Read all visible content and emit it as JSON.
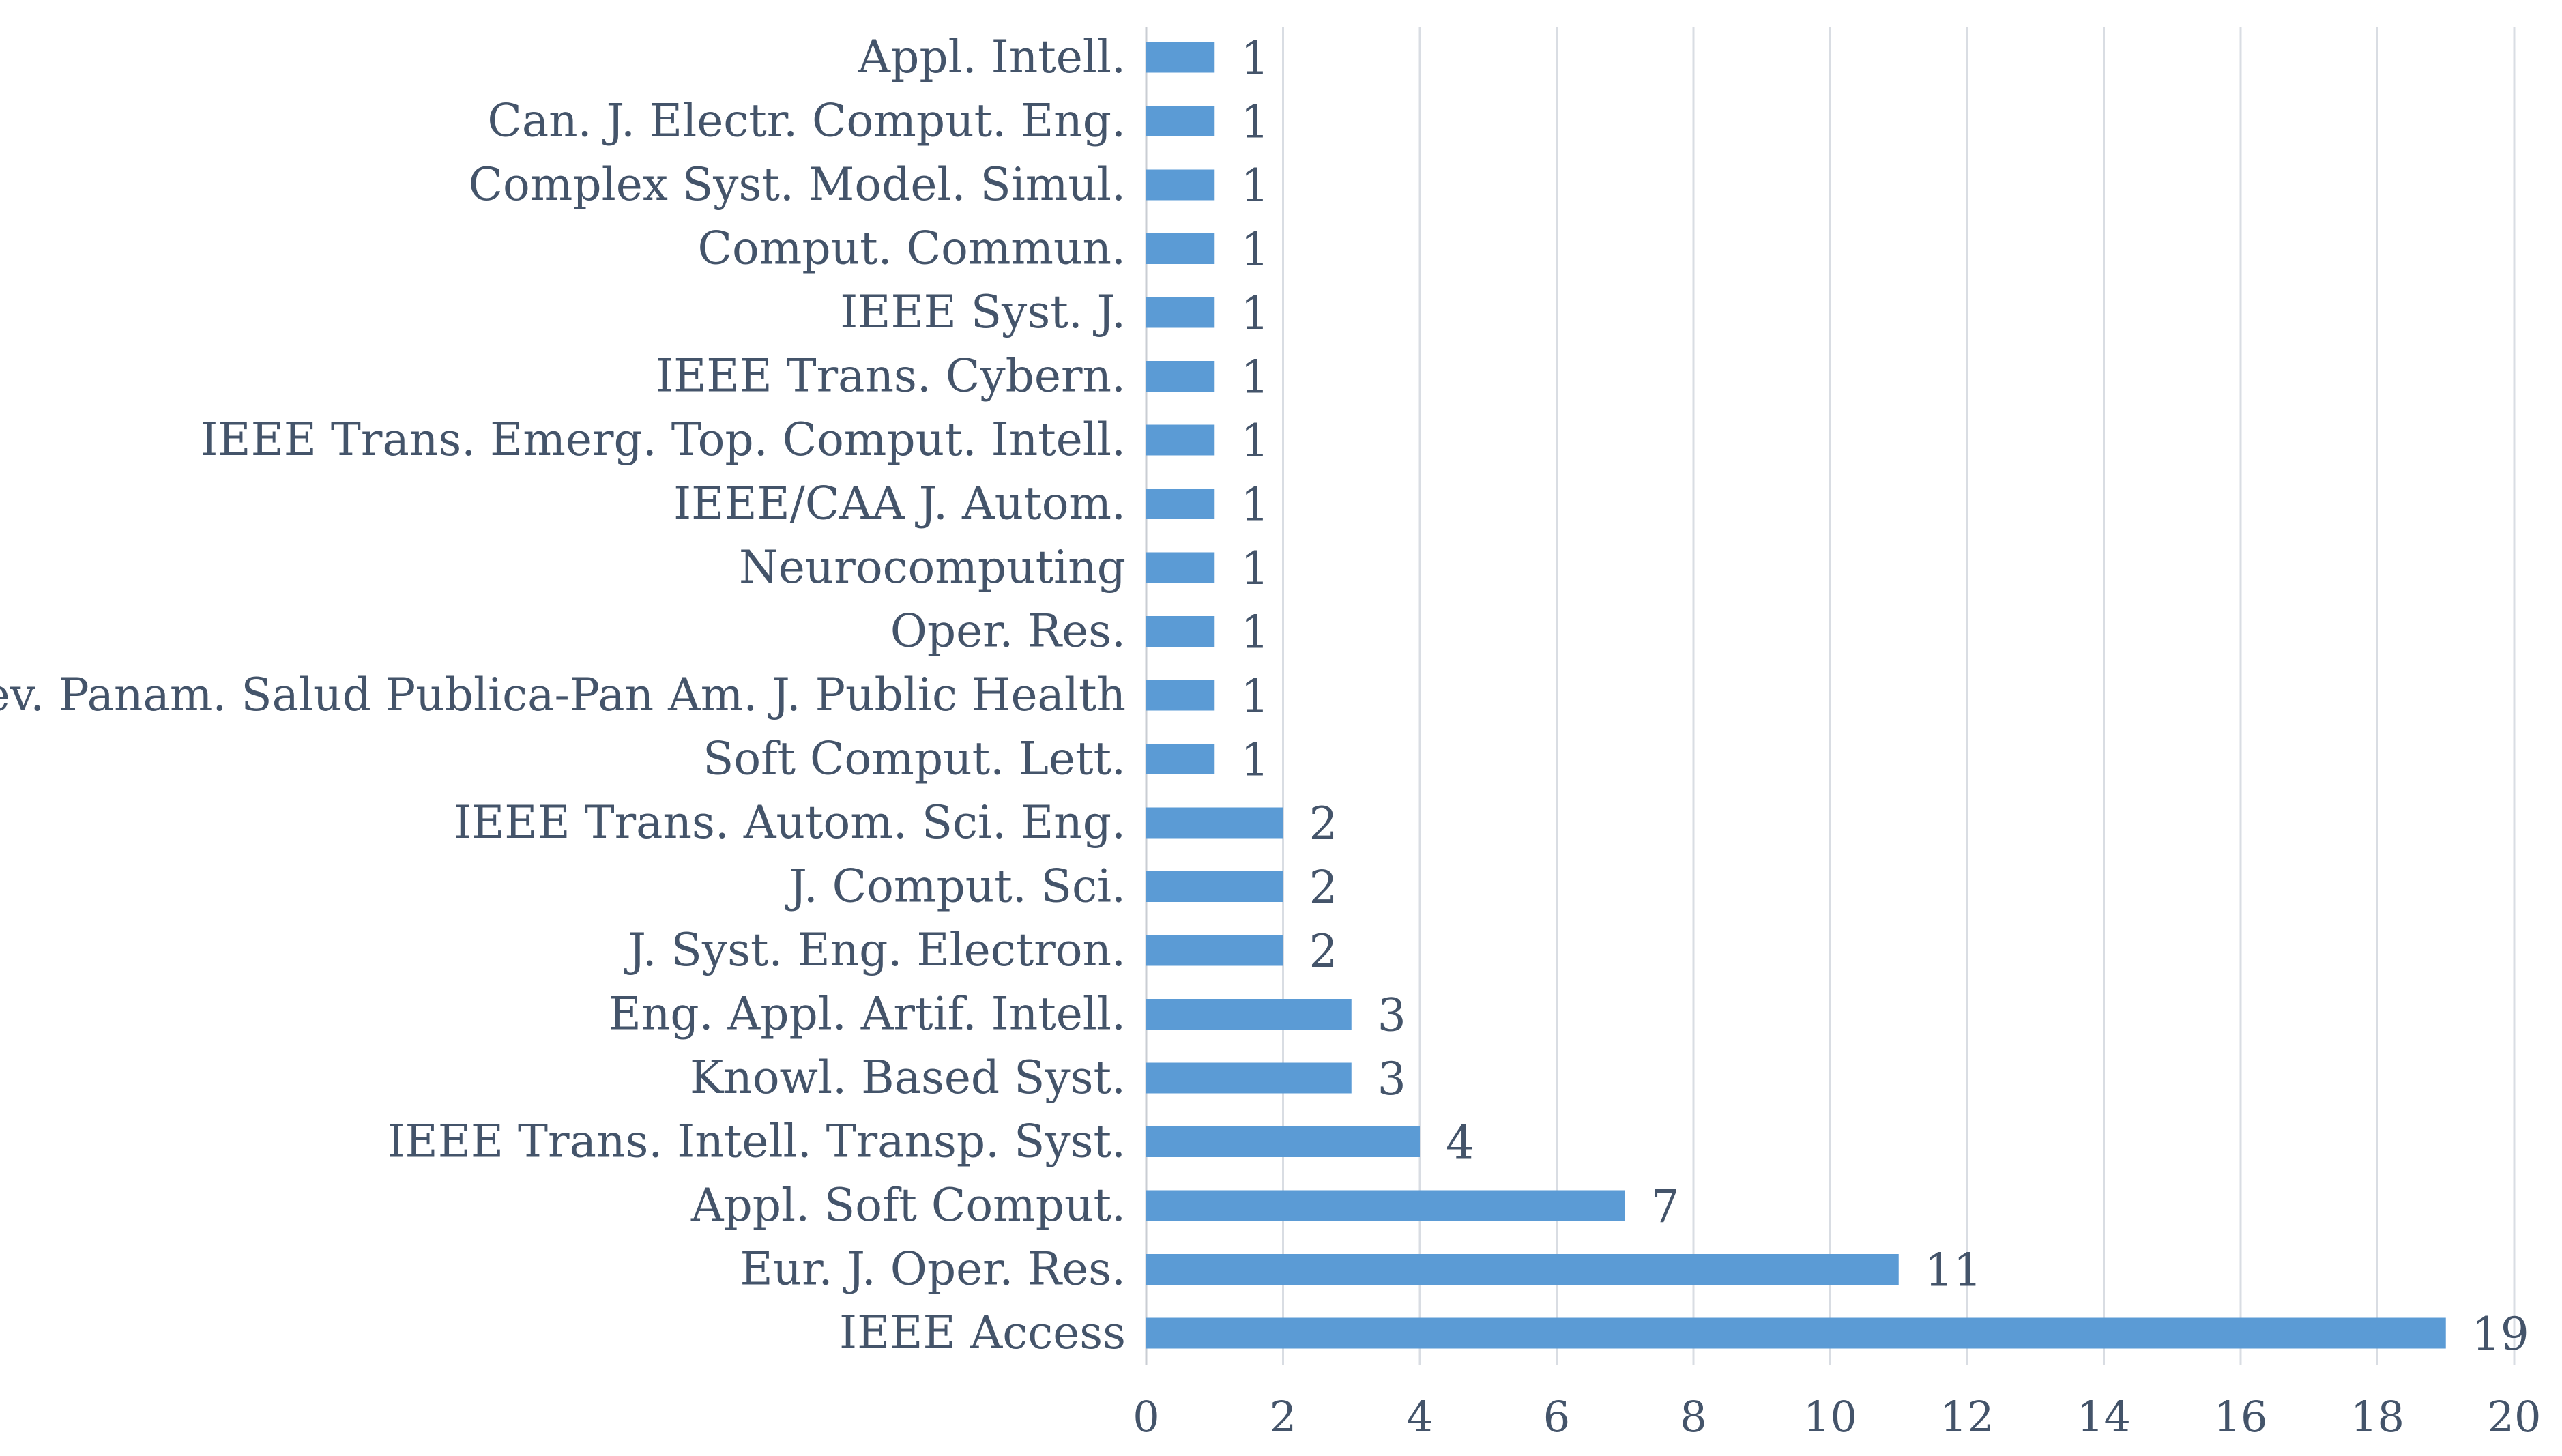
{
  "chart_data": {
    "type": "bar",
    "orientation": "horizontal",
    "title": "",
    "xlabel": "",
    "ylabel": "",
    "xlim": [
      0,
      20
    ],
    "x_ticks": [
      0,
      2,
      4,
      6,
      8,
      10,
      12,
      14,
      16,
      18,
      20
    ],
    "grid": true,
    "legend": "none",
    "bar_color": "#5b9bd5",
    "categories": [
      "Appl. Intell.",
      "Can. J. Electr. Comput. Eng.",
      "Complex Syst. Model. Simul.",
      "Comput. Commun.",
      "IEEE Syst. J.",
      "IEEE Trans. Cybern.",
      "IEEE Trans. Emerg. Top. Comput. Intell.",
      "IEEE/CAA J. Autom.",
      "Neurocomputing",
      "Oper. Res.",
      "Rev. Panam. Salud Publica-Pan Am. J. Public Health",
      "Soft Comput. Lett.",
      "IEEE Trans. Autom. Sci. Eng.",
      "J. Comput. Sci.",
      "J. Syst. Eng. Electron.",
      "Eng. Appl. Artif. Intell.",
      "Knowl. Based Syst.",
      "IEEE Trans. Intell. Transp. Syst.",
      "Appl. Soft Comput.",
      "Eur. J. Oper. Res.",
      "IEEE Access"
    ],
    "values": [
      1,
      1,
      1,
      1,
      1,
      1,
      1,
      1,
      1,
      1,
      1,
      1,
      2,
      2,
      2,
      3,
      3,
      4,
      7,
      11,
      19
    ]
  }
}
